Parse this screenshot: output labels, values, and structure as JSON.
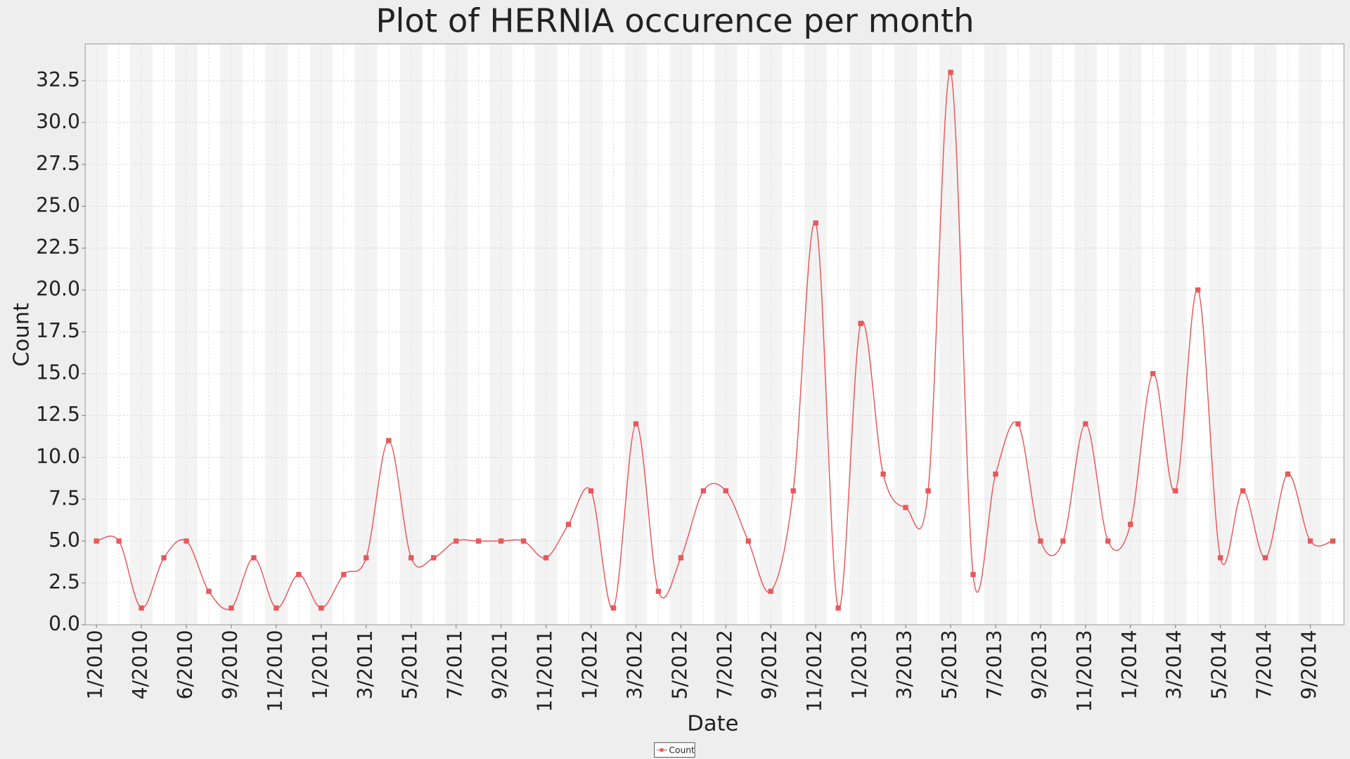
{
  "chart_data": {
    "type": "line",
    "title": "Plot of HERNIA occurence per month",
    "x_label": "Date",
    "y_label": "Count",
    "categories": [
      "1/2010",
      null,
      "4/2010",
      null,
      "6/2010",
      null,
      "9/2010",
      null,
      "11/2010",
      null,
      "1/2011",
      null,
      "3/2011",
      null,
      "5/2011",
      null,
      "7/2011",
      null,
      "9/2011",
      null,
      "11/2011",
      null,
      "1/2012",
      null,
      "3/2012",
      null,
      "5/2012",
      null,
      "7/2012",
      null,
      "9/2012",
      null,
      "11/2012",
      null,
      "1/2013",
      null,
      "3/2013",
      null,
      "5/2013",
      null,
      "7/2013",
      null,
      "9/2013",
      null,
      "11/2013",
      null,
      "1/2014",
      null,
      "3/2014",
      null,
      "5/2014",
      null,
      "7/2014",
      null,
      "9/2014",
      null
    ],
    "series": [
      {
        "name": "Count",
        "color": "#e8585a",
        "values": [
          5,
          5,
          1,
          4,
          5,
          2,
          1,
          4,
          1,
          3,
          1,
          3,
          4,
          11,
          4,
          4,
          5,
          5,
          5,
          5,
          4,
          6,
          8,
          1,
          12,
          2,
          4,
          8,
          8,
          5,
          2,
          8,
          24,
          1,
          18,
          9,
          7,
          8,
          33,
          3,
          9,
          12,
          5,
          5,
          12,
          5,
          6,
          15,
          8,
          20,
          4,
          8,
          4,
          9,
          5,
          5
        ]
      }
    ],
    "ylim": [
      0,
      34.7
    ],
    "yticks": [
      {
        "value": 0,
        "label": "0.0"
      },
      2.5,
      {
        "value": 5,
        "label": "5.0"
      },
      7.5,
      {
        "value": 10,
        "label": "10.0"
      },
      12.5,
      {
        "value": 15,
        "label": "15.0"
      },
      17.5,
      {
        "value": 20,
        "label": "20.0"
      },
      22.5,
      {
        "value": 25,
        "label": "25.0"
      },
      27.5,
      {
        "value": 30,
        "label": "30.0"
      },
      32.5
    ],
    "grid": true,
    "legend": "bottom"
  }
}
